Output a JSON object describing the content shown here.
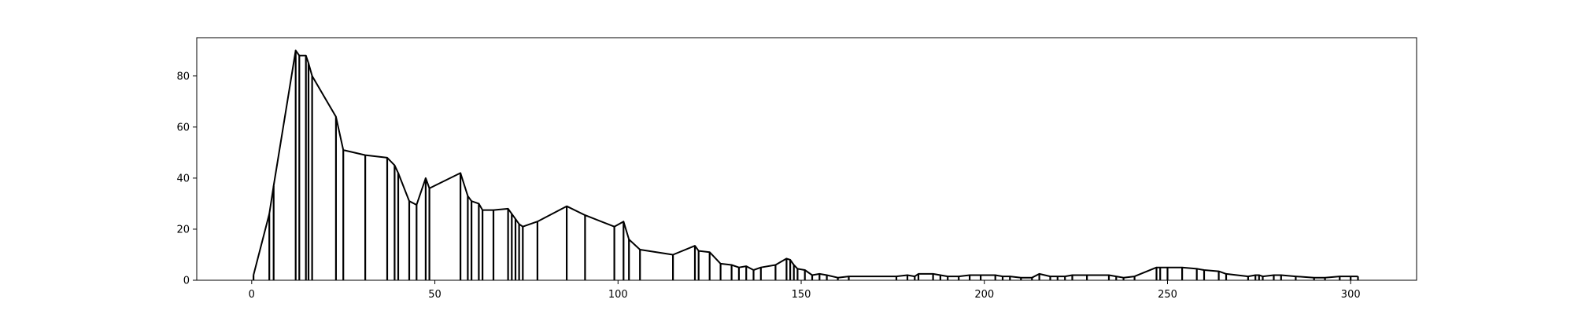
{
  "chart_data": {
    "type": "line",
    "title": "",
    "xlabel": "",
    "ylabel": "",
    "xlim": [
      -15,
      318
    ],
    "ylim": [
      0,
      95
    ],
    "x_ticks": [
      0,
      50,
      100,
      150,
      200,
      250,
      300
    ],
    "y_ticks": [
      0,
      20,
      40,
      60,
      80
    ],
    "grid": false,
    "stems": true,
    "points": [
      [
        0.5,
        2.0
      ],
      [
        4.8,
        26.0
      ],
      [
        6.0,
        37.0
      ],
      [
        12.0,
        90.0
      ],
      [
        13.0,
        88.0
      ],
      [
        14.8,
        88.0
      ],
      [
        15.5,
        85.0
      ],
      [
        16.5,
        80.0
      ],
      [
        23.0,
        64.0
      ],
      [
        25.0,
        51.0
      ],
      [
        31.0,
        49.0
      ],
      [
        37.0,
        48.0
      ],
      [
        39.0,
        45.0
      ],
      [
        40.0,
        42.0
      ],
      [
        43.0,
        31.0
      ],
      [
        45.0,
        29.5
      ],
      [
        47.5,
        40.0
      ],
      [
        48.5,
        36.0
      ],
      [
        57.0,
        42.0
      ],
      [
        59.0,
        33.0
      ],
      [
        60.0,
        31.0
      ],
      [
        62.0,
        30.0
      ],
      [
        63.0,
        27.5
      ],
      [
        66.0,
        27.5
      ],
      [
        70.0,
        28.0
      ],
      [
        71.0,
        26.0
      ],
      [
        72.0,
        24.0
      ],
      [
        73.0,
        22.0
      ],
      [
        74.0,
        21.0
      ],
      [
        78.0,
        23.0
      ],
      [
        86.0,
        29.0
      ],
      [
        91.0,
        25.5
      ],
      [
        99.0,
        21.0
      ],
      [
        101.5,
        23.0
      ],
      [
        103.0,
        16.0
      ],
      [
        106.0,
        12.0
      ],
      [
        115.0,
        10.0
      ],
      [
        121.0,
        13.5
      ],
      [
        122.0,
        11.5
      ],
      [
        125.0,
        11.0
      ],
      [
        128.0,
        6.5
      ],
      [
        131.0,
        6.0
      ],
      [
        133.0,
        5.0
      ],
      [
        135.0,
        5.5
      ],
      [
        137.0,
        4.0
      ],
      [
        139.0,
        5.0
      ],
      [
        143.0,
        6.0
      ],
      [
        146.0,
        8.5
      ],
      [
        147.0,
        8.0
      ],
      [
        148.0,
        6.0
      ],
      [
        149.0,
        4.5
      ],
      [
        151.0,
        4.0
      ],
      [
        153.0,
        2.0
      ],
      [
        155.0,
        2.5
      ],
      [
        157.0,
        2.0
      ],
      [
        160.0,
        1.0
      ],
      [
        163.0,
        1.5
      ],
      [
        176.0,
        1.5
      ],
      [
        179.0,
        2.0
      ],
      [
        181.0,
        1.5
      ],
      [
        182.0,
        2.5
      ],
      [
        186.0,
        2.5
      ],
      [
        188.0,
        2.0
      ],
      [
        190.0,
        1.5
      ],
      [
        193.0,
        1.5
      ],
      [
        196.0,
        2.0
      ],
      [
        199.0,
        2.0
      ],
      [
        203.0,
        2.0
      ],
      [
        205.0,
        1.5
      ],
      [
        207.0,
        1.5
      ],
      [
        210.0,
        1.0
      ],
      [
        213.0,
        1.0
      ],
      [
        215.0,
        2.5
      ],
      [
        218.0,
        1.5
      ],
      [
        220.0,
        1.5
      ],
      [
        222.0,
        1.5
      ],
      [
        224.0,
        2.0
      ],
      [
        228.0,
        2.0
      ],
      [
        234.0,
        2.0
      ],
      [
        236.0,
        1.5
      ],
      [
        238.0,
        1.0
      ],
      [
        241.0,
        1.5
      ],
      [
        247.0,
        5.0
      ],
      [
        248.0,
        5.0
      ],
      [
        250.0,
        5.0
      ],
      [
        254.0,
        5.0
      ],
      [
        258.0,
        4.5
      ],
      [
        260.0,
        4.0
      ],
      [
        264.0,
        3.5
      ],
      [
        266.0,
        2.5
      ],
      [
        272.0,
        1.5
      ],
      [
        274.0,
        2.0
      ],
      [
        275.0,
        2.0
      ],
      [
        276.0,
        1.5
      ],
      [
        279.0,
        2.0
      ],
      [
        281.0,
        2.0
      ],
      [
        285.0,
        1.5
      ],
      [
        290.0,
        1.0
      ],
      [
        293.0,
        1.0
      ],
      [
        297.0,
        1.5
      ],
      [
        300.0,
        1.5
      ],
      [
        302.0,
        1.5
      ]
    ]
  }
}
